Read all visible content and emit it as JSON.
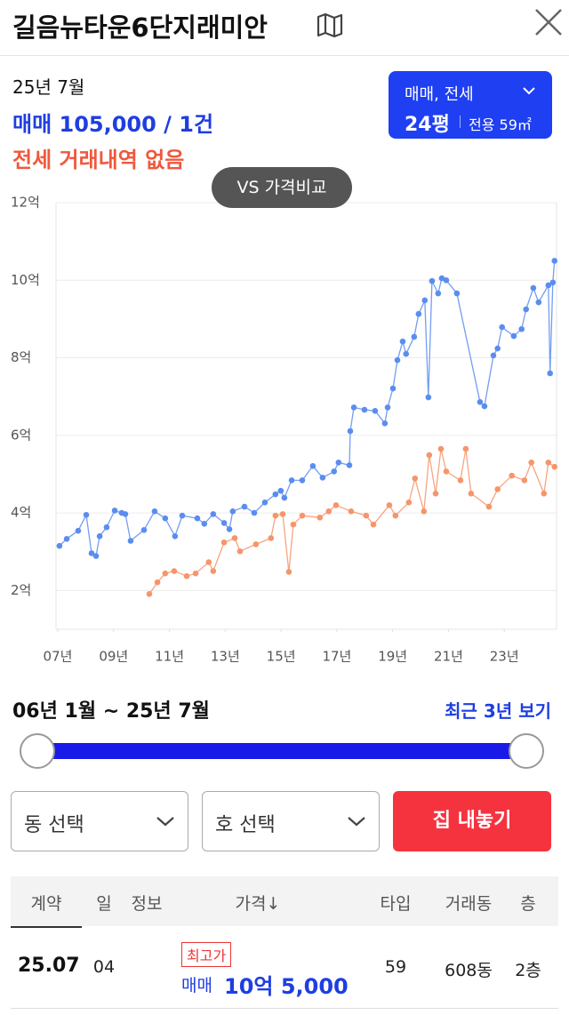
{
  "header": {
    "title": "길음뉴타운6단지래미안"
  },
  "summary": {
    "period": "25년 7월",
    "sale": "매매 105,000 / 1건",
    "jeonse": "전세 거래내역 없음"
  },
  "type_selector": {
    "deal": "매매, 전세",
    "size": "24평",
    "area": "전용 59㎡"
  },
  "compare_button": "VS 가격비교",
  "chart_data": {
    "type": "line",
    "xlim": [
      2007,
      2025
    ],
    "xticks": [
      {
        "value": 2007,
        "label": "07년"
      },
      {
        "value": 2009,
        "label": "09년"
      },
      {
        "value": 2011,
        "label": "11년"
      },
      {
        "value": 2013,
        "label": "13년"
      },
      {
        "value": 2015,
        "label": "15년"
      },
      {
        "value": 2017,
        "label": "17년"
      },
      {
        "value": 2019,
        "label": "19년"
      },
      {
        "value": 2021,
        "label": "21년"
      },
      {
        "value": 2023,
        "label": "23년"
      }
    ],
    "ylim": [
      1,
      12
    ],
    "yticks": [
      {
        "value": 2,
        "label": "2억"
      },
      {
        "value": 4,
        "label": "4억"
      },
      {
        "value": 6,
        "label": "6억"
      },
      {
        "value": 8,
        "label": "8억"
      },
      {
        "value": 10,
        "label": "10억"
      },
      {
        "value": 12,
        "label": "12억"
      }
    ],
    "grid": true,
    "series": [
      {
        "color": "#5b8def",
        "x": [
          2007.06,
          2007.32,
          2007.73,
          2008.02,
          2008.21,
          2008.37,
          2008.5,
          2008.75,
          2009.04,
          2009.29,
          2009.42,
          2009.61,
          2010.09,
          2010.47,
          2010.85,
          2011.2,
          2011.46,
          2012.0,
          2012.25,
          2012.57,
          2012.96,
          2013.15,
          2013.27,
          2013.69,
          2014.04,
          2014.42,
          2014.8,
          2014.99,
          2015.12,
          2015.38,
          2015.76,
          2016.14,
          2016.49,
          2016.9,
          2017.06,
          2017.45,
          2017.48,
          2017.61,
          2017.99,
          2018.37,
          2018.72,
          2018.82,
          2019.01,
          2019.17,
          2019.36,
          2019.48,
          2019.77,
          2019.93,
          2020.15,
          2020.28,
          2020.41,
          2020.63,
          2020.76,
          2020.92,
          2021.3,
          2022.13,
          2022.29,
          2022.61,
          2022.76,
          2022.92,
          2023.34,
          2023.62,
          2023.78,
          2024.04,
          2024.23,
          2024.58,
          2024.64,
          2024.74,
          2024.8
        ],
        "values": [
          3.15,
          3.33,
          3.54,
          3.95,
          2.96,
          2.89,
          3.4,
          3.63,
          4.06,
          4.0,
          3.97,
          3.28,
          3.56,
          4.04,
          3.86,
          3.4,
          3.93,
          3.86,
          3.72,
          3.97,
          3.74,
          3.58,
          4.04,
          4.16,
          4.0,
          4.27,
          4.48,
          4.57,
          4.39,
          4.84,
          4.84,
          5.21,
          4.91,
          5.07,
          5.3,
          5.23,
          6.11,
          6.72,
          6.66,
          6.63,
          6.31,
          6.72,
          7.21,
          7.94,
          8.42,
          8.1,
          8.54,
          9.13,
          9.48,
          6.98,
          9.98,
          9.66,
          10.05,
          10.0,
          9.66,
          6.86,
          6.75,
          8.06,
          8.24,
          8.79,
          8.56,
          8.74,
          9.25,
          9.8,
          9.43,
          9.87,
          7.6,
          9.94,
          10.5
        ]
      },
      {
        "color": "#f5956a",
        "x": [
          2010.28,
          2010.57,
          2010.85,
          2011.17,
          2011.62,
          2011.94,
          2012.41,
          2012.57,
          2012.96,
          2013.34,
          2013.53,
          2014.1,
          2014.64,
          2014.8,
          2015.06,
          2015.28,
          2015.44,
          2015.76,
          2016.39,
          2016.71,
          2016.97,
          2017.51,
          2018.05,
          2018.31,
          2018.88,
          2019.1,
          2019.58,
          2019.8,
          2020.12,
          2020.31,
          2020.54,
          2020.73,
          2020.92,
          2021.43,
          2021.62,
          2021.81,
          2022.45,
          2022.76,
          2023.27,
          2023.72,
          2023.97,
          2024.42,
          2024.58,
          2024.8
        ],
        "values": [
          1.91,
          2.21,
          2.44,
          2.5,
          2.37,
          2.44,
          2.73,
          2.5,
          3.24,
          3.35,
          3.01,
          3.19,
          3.35,
          3.93,
          3.97,
          2.48,
          3.7,
          3.93,
          3.88,
          4.04,
          4.2,
          4.04,
          3.93,
          3.7,
          4.2,
          3.93,
          4.27,
          4.89,
          4.04,
          5.49,
          4.5,
          5.65,
          5.07,
          4.84,
          5.65,
          4.5,
          4.16,
          4.61,
          4.96,
          4.84,
          5.3,
          4.5,
          5.3,
          5.19
        ]
      }
    ]
  },
  "range": {
    "label": "06년 1월 ~ 25년 7월",
    "recent": "최근 3년 보기"
  },
  "filters": {
    "dong": "동 선택",
    "ho": "호 선택",
    "action": "집 내놓기"
  },
  "table": {
    "headers": [
      "계약",
      "일",
      "정보",
      "가격↓",
      "타입",
      "거래동",
      "층"
    ],
    "rows": [
      {
        "contract": "25.07",
        "day": "04",
        "badge": "최고가",
        "deal": "매매",
        "price": "10억 5,000",
        "type": "59",
        "dong": "608동",
        "floor": "2층"
      }
    ]
  }
}
